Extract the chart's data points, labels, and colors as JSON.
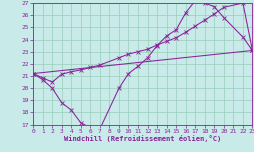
{
  "xlabel": "Windchill (Refroidissement éolien,°C)",
  "bg_color": "#c8eae8",
  "line_color": "#882299",
  "grid_color": "#99ccbb",
  "xlim": [
    0,
    23
  ],
  "ylim": [
    17,
    27
  ],
  "xticks": [
    0,
    1,
    2,
    3,
    4,
    5,
    6,
    7,
    8,
    9,
    10,
    11,
    12,
    13,
    14,
    15,
    16,
    17,
    18,
    19,
    20,
    21,
    22,
    23
  ],
  "yticks": [
    17,
    18,
    19,
    20,
    21,
    22,
    23,
    24,
    25,
    26,
    27
  ],
  "curve1_x": [
    0,
    1,
    2,
    3,
    4,
    5,
    6,
    7,
    9,
    10,
    11,
    12,
    13,
    14,
    15,
    16,
    17,
    18,
    19,
    20,
    22,
    23
  ],
  "curve1_y": [
    21.2,
    20.7,
    20.0,
    18.8,
    18.2,
    17.15,
    16.75,
    16.65,
    20.0,
    21.2,
    21.8,
    22.5,
    23.5,
    24.3,
    24.8,
    26.2,
    27.2,
    27.0,
    26.7,
    25.8,
    24.2,
    23.1
  ],
  "curve2_x": [
    0,
    1,
    2,
    3,
    4,
    5,
    6,
    7,
    9,
    10,
    11,
    12,
    13,
    14,
    15,
    16,
    17,
    18,
    19,
    20,
    22,
    23
  ],
  "curve2_y": [
    21.2,
    20.85,
    20.5,
    21.15,
    21.35,
    21.5,
    21.7,
    21.9,
    22.5,
    22.8,
    23.0,
    23.2,
    23.55,
    23.85,
    24.15,
    24.6,
    25.1,
    25.6,
    26.1,
    26.65,
    27.0,
    23.1
  ],
  "curve3_x": [
    0,
    23
  ],
  "curve3_y": [
    21.2,
    23.1
  ]
}
